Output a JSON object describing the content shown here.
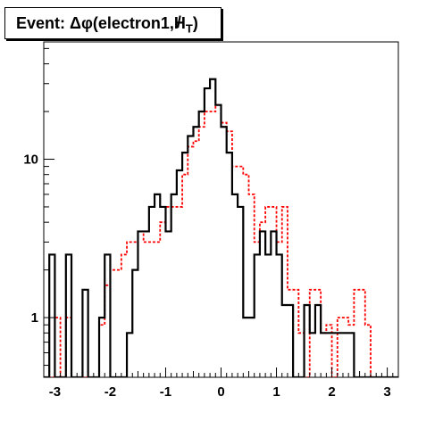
{
  "chart_data": {
    "type": "histogram-step",
    "title": "Event: Δφ(electron1,H̸T)",
    "title_parts": {
      "prefix": "Event: Δφ(electron1,",
      "symbol": "H",
      "subscript": "T",
      "suffix": ")"
    },
    "xlim": [
      -3.2,
      3.2
    ],
    "ylim": [
      0.42,
      55
    ],
    "log_y": true,
    "grid": false,
    "x_ticks": [
      "-3",
      "-2",
      "-1",
      "0",
      "1",
      "2",
      "3"
    ],
    "x_tick_values": [
      -3,
      -2,
      -1,
      0,
      1,
      2,
      3
    ],
    "y_ticks": [
      "1",
      "10"
    ],
    "y_tick_values": [
      1,
      10
    ],
    "bin_edges": [
      -3.2,
      -3.1,
      -3.0,
      -2.9,
      -2.8,
      -2.7,
      -2.6,
      -2.5,
      -2.4,
      -2.3,
      -2.2,
      -2.1,
      -2.0,
      -1.9,
      -1.8,
      -1.7,
      -1.6,
      -1.5,
      -1.4,
      -1.3,
      -1.2,
      -1.1,
      -1.0,
      -0.9,
      -0.8,
      -0.7,
      -0.6,
      -0.5,
      -0.4,
      -0.3,
      -0.2,
      -0.1,
      0.0,
      0.1,
      0.2,
      0.3,
      0.4,
      0.5,
      0.6,
      0.7,
      0.8,
      0.9,
      1.0,
      1.1,
      1.2,
      1.3,
      1.4,
      1.5,
      1.6,
      1.7,
      1.8,
      1.9,
      2.0,
      2.1,
      2.2,
      2.3,
      2.4,
      2.5,
      2.6,
      2.7,
      2.8,
      2.9,
      3.0,
      3.1,
      3.2
    ],
    "series": [
      {
        "color": "#000000",
        "style": "solid",
        "values": [
          0.42,
          2.5,
          0.42,
          0.42,
          2.5,
          0.42,
          0.42,
          1.5,
          0.42,
          0.42,
          1.0,
          2.5,
          0.42,
          0.42,
          0.42,
          0.8,
          2.0,
          3.5,
          3.5,
          5.0,
          6.0,
          5.0,
          3.5,
          6.0,
          8.5,
          11.0,
          14.0,
          16.0,
          20.0,
          28.0,
          32.0,
          22.0,
          16.0,
          11.0,
          6.0,
          5.0,
          1.0,
          1.0,
          2.5,
          3.5,
          2.5,
          3.5,
          2.5,
          1.2,
          1.2,
          0.42,
          0.42,
          1.2,
          0.8,
          1.2,
          0.8,
          0.8,
          0.8,
          0.8,
          0.8,
          0.8,
          0.42,
          0.42,
          0.42,
          0.42,
          0.42,
          0.42,
          0.42,
          0.42
        ]
      },
      {
        "color": "#ff0000",
        "style": "dashed",
        "values": [
          0.42,
          0.42,
          1.0,
          0.42,
          1.0,
          0.42,
          0.42,
          0.42,
          0.42,
          0.42,
          0.9,
          1.6,
          2.0,
          2.0,
          2.5,
          3.0,
          3.0,
          3.5,
          3.0,
          3.0,
          3.0,
          4.0,
          5.0,
          5.0,
          5.0,
          8.0,
          12.0,
          13.0,
          16.0,
          20.0,
          20.0,
          22.0,
          17.0,
          15.0,
          9.0,
          9.0,
          8.0,
          6.0,
          3.0,
          4.0,
          5.0,
          5.0,
          3.0,
          5.0,
          1.5,
          1.5,
          0.8,
          0.42,
          1.5,
          1.5,
          0.8,
          0.9,
          0.42,
          1.0,
          1.0,
          0.9,
          1.5,
          1.5,
          0.9,
          0.42,
          0.42,
          0.42,
          0.42,
          0.42
        ]
      }
    ]
  }
}
